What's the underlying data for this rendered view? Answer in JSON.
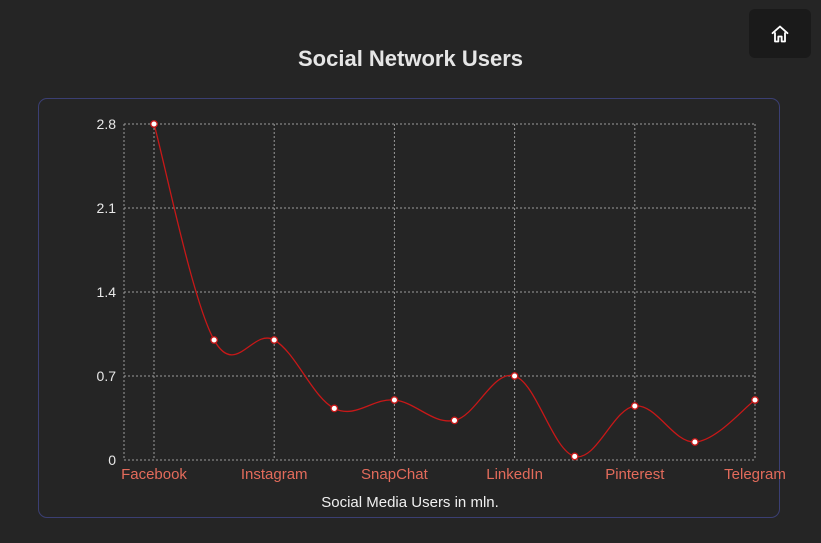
{
  "header": {
    "home_icon": "home-icon"
  },
  "colors": {
    "line": "#c81818",
    "grid": "#9a9a9a",
    "x_tick": "#e36b5b",
    "y_tick": "#e8e8e8",
    "border": "#3b3f73"
  },
  "chart_data": {
    "type": "line",
    "title": "Social Network Users",
    "xlabel": "Social Media Users in mln.",
    "ylabel": "",
    "ylim": [
      0,
      2.8
    ],
    "yticks": [
      "0",
      "0.7",
      "1.4",
      "2.1",
      "2.8"
    ],
    "ytick_values": [
      0,
      0.7,
      1.4,
      2.1,
      2.8
    ],
    "xticks": [
      "Facebook",
      "Instagram",
      "SnapChat",
      "LinkedIn",
      "Pinterest",
      "Telegram"
    ],
    "x": [
      0,
      1,
      2,
      3,
      4,
      5,
      6,
      7,
      8,
      9,
      10
    ],
    "values": [
      2.8,
      1.0,
      1.0,
      0.43,
      0.5,
      0.33,
      0.7,
      0.03,
      0.45,
      0.15,
      0.5
    ],
    "grid": true,
    "smooth": true
  }
}
